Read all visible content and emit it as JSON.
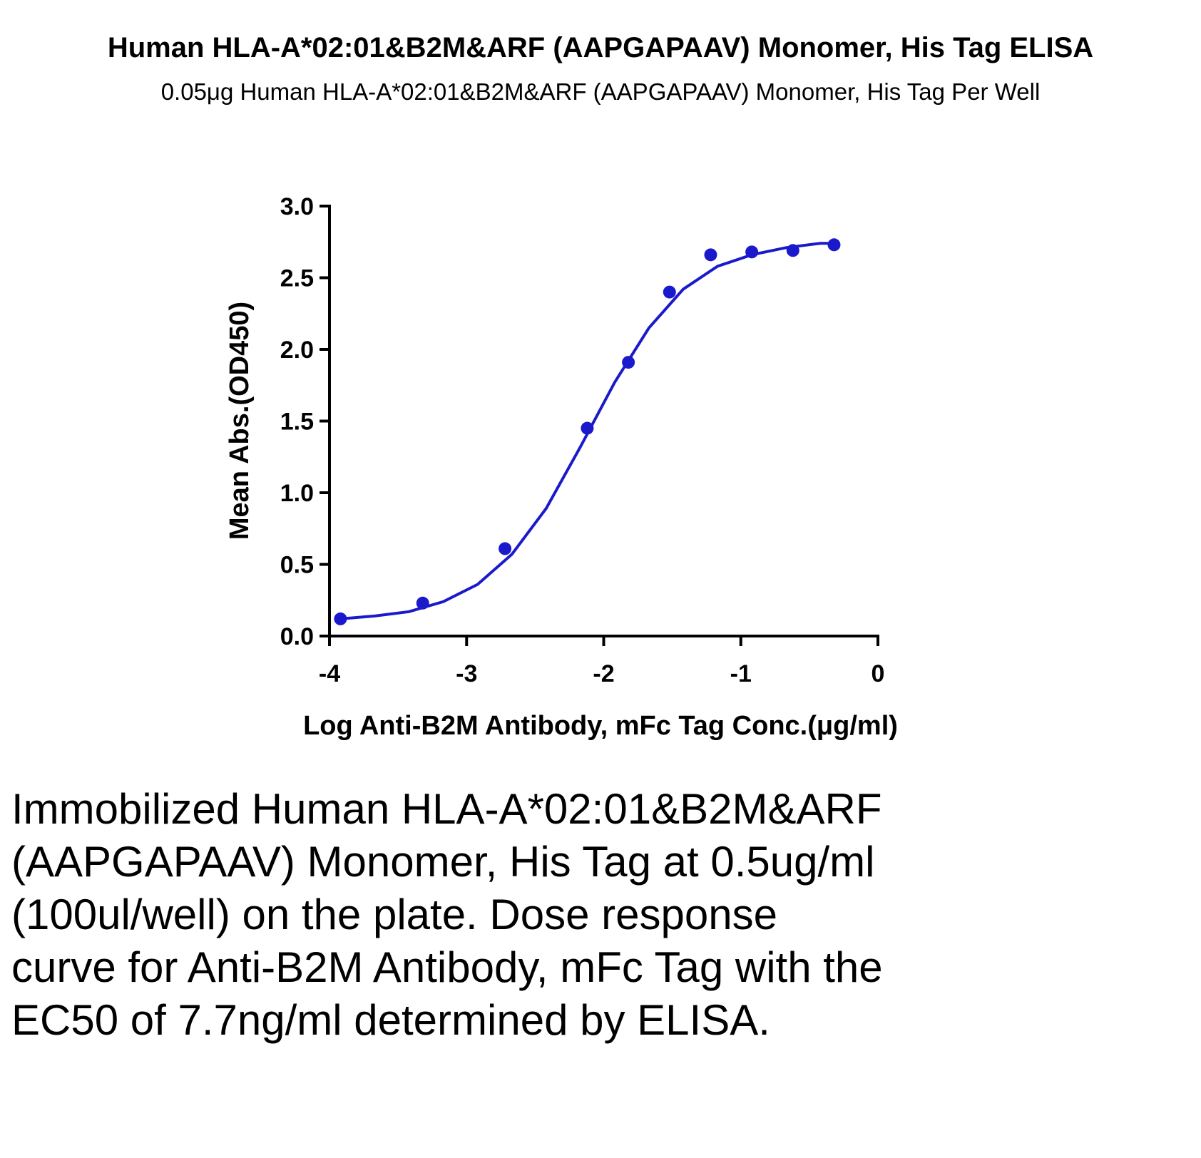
{
  "chart_data": {
    "type": "scatter",
    "title": "Human HLA-A*02:01&B2M&ARF (AAPGAPAAV) Monomer, His Tag ELISA",
    "subtitle": "0.05μg Human HLA-A*02:01&B2M&ARF (AAPGAPAAV) Monomer, His Tag Per Well",
    "x_label": "Log Anti-B2M Antibody, mFc Tag Conc.(μg/ml)",
    "y_label": "Mean Abs.(OD450)",
    "xlim": [
      -4,
      0
    ],
    "xticks": [
      -4,
      -3,
      -2,
      -1,
      0
    ],
    "ylim": [
      0,
      3
    ],
    "yticks": [
      {
        "value": 0,
        "label": "0.0"
      },
      {
        "value": 0.5,
        "label": "0.5"
      },
      {
        "value": 1,
        "label": "1.0"
      },
      {
        "value": 1.5,
        "label": "1.5"
      },
      {
        "value": 2,
        "label": "2.0"
      },
      {
        "value": 2.5,
        "label": "2.5"
      },
      {
        "value": 3,
        "label": "3.0"
      }
    ],
    "series": [
      {
        "style": "markers",
        "color": "#1a1acc",
        "x": [
          -3.92,
          -3.32,
          -2.72,
          -2.12,
          -1.82,
          -1.52,
          -1.22,
          -0.92,
          -0.62,
          -0.32
        ],
        "values": [
          0.12,
          0.23,
          0.61,
          1.45,
          1.91,
          2.4,
          2.66,
          2.68,
          2.69,
          2.73
        ]
      },
      {
        "style": "line",
        "color": "#1a1acc",
        "x": [
          -3.92,
          -3.67,
          -3.42,
          -3.17,
          -2.92,
          -2.67,
          -2.42,
          -2.17,
          -1.92,
          -1.67,
          -1.42,
          -1.17,
          -0.92,
          -0.67,
          -0.42,
          -0.3
        ],
        "values": [
          0.12,
          0.14,
          0.17,
          0.24,
          0.36,
          0.57,
          0.89,
          1.32,
          1.77,
          2.15,
          2.42,
          2.58,
          2.66,
          2.71,
          2.74,
          2.74
        ]
      }
    ]
  },
  "description": "Immobilized Human HLA-A*02:01&B2M&ARF (AAPGAPAAV) Monomer, His Tag at 0.5ug/ml (100ul/well) on the plate. Dose response curve for Anti-B2M Antibody, mFc Tag with the EC50 of 7.7ng/ml determined by ELISA."
}
